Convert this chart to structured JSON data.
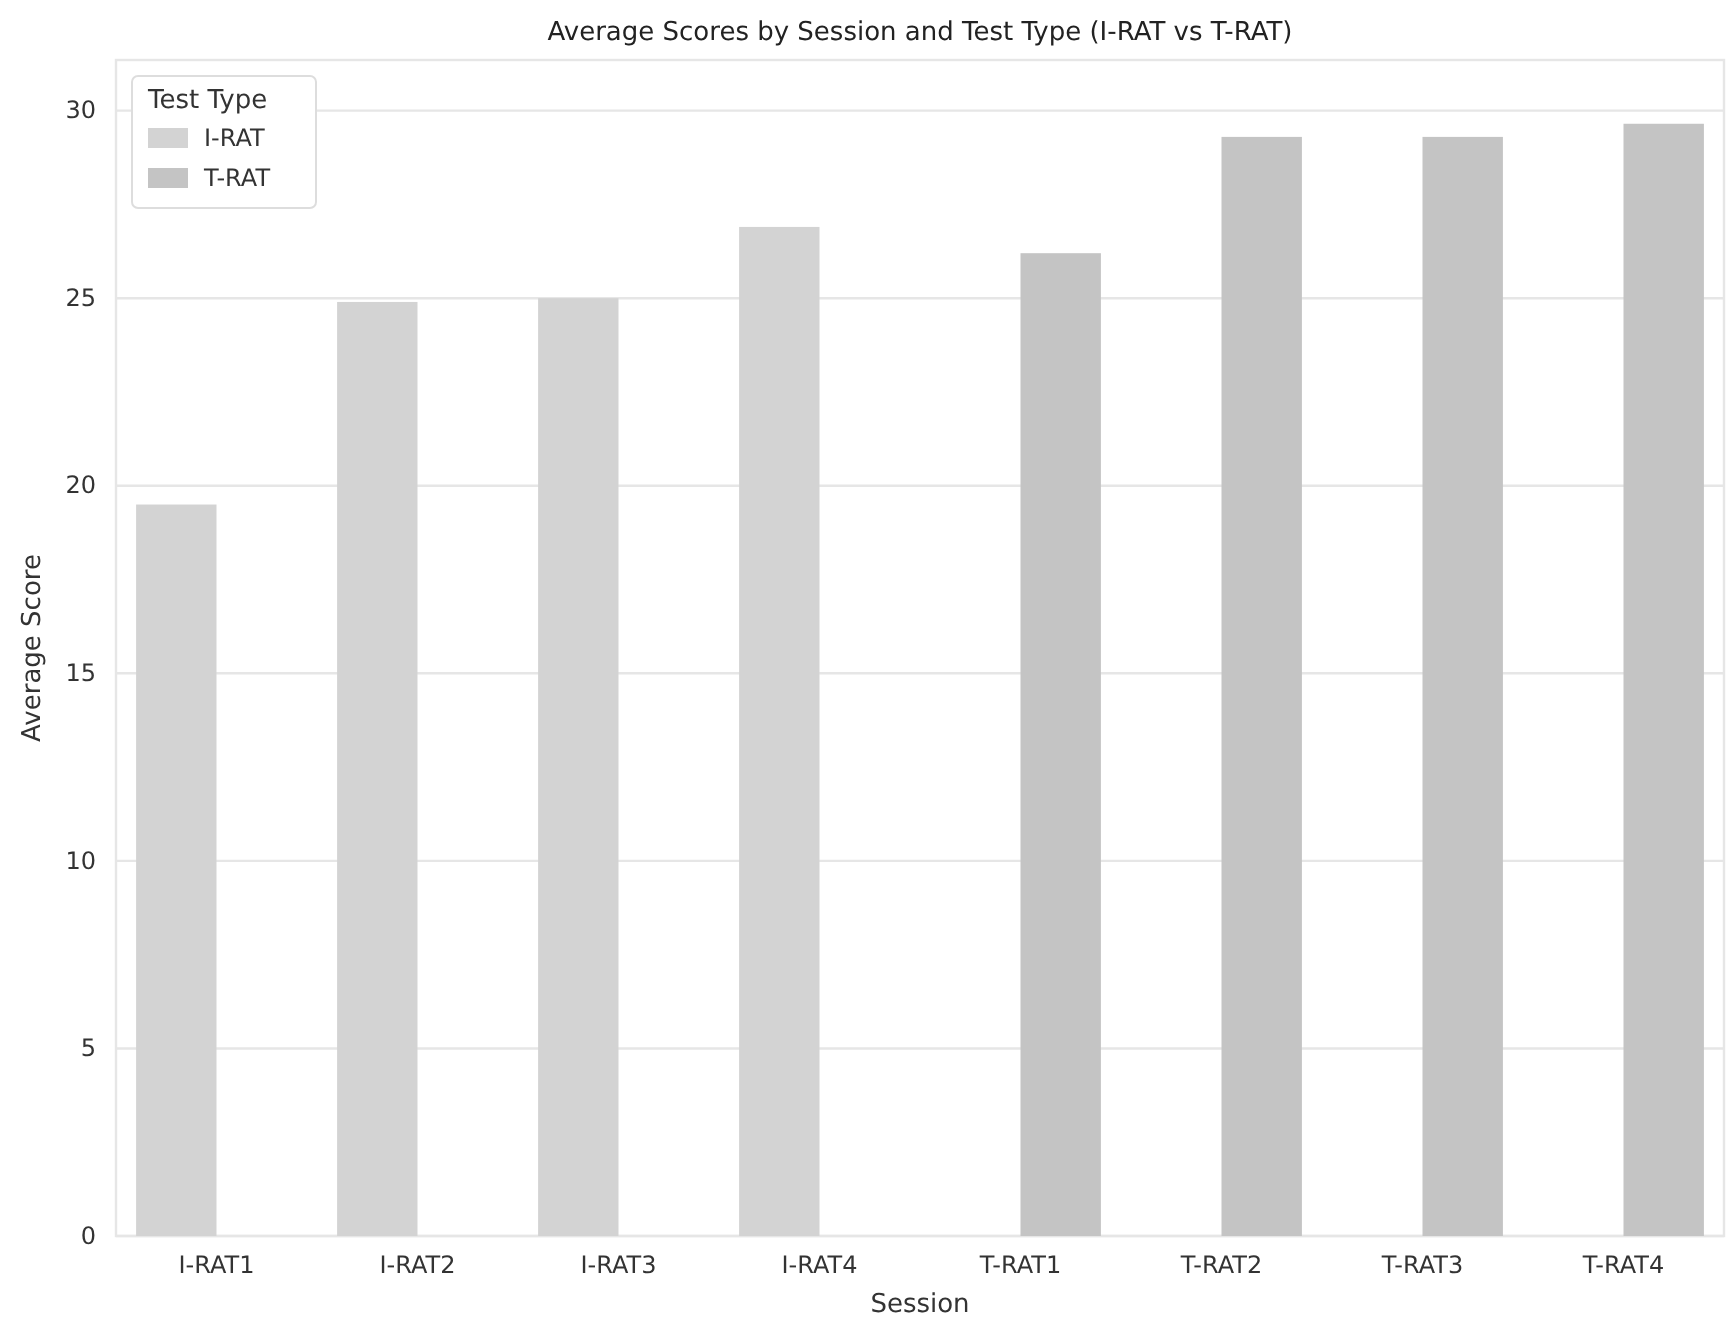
{
  "chart_data": {
    "type": "bar",
    "title": "Average Scores by Session and Test Type (I-RAT vs T-RAT)",
    "xlabel": "Session",
    "ylabel": "Average Score",
    "legend_title": "Test Type",
    "categories": [
      "I-RAT1",
      "I-RAT2",
      "I-RAT3",
      "I-RAT4",
      "T-RAT1",
      "T-RAT2",
      "T-RAT3",
      "T-RAT4"
    ],
    "series": [
      {
        "name": "I-RAT",
        "color": "#d3d3d3",
        "values": [
          19.5,
          24.9,
          25.0,
          26.9,
          null,
          null,
          null,
          null
        ]
      },
      {
        "name": "T-RAT",
        "color": "#c4c4c4",
        "values": [
          null,
          null,
          null,
          null,
          26.2,
          29.3,
          29.3,
          29.65
        ]
      }
    ],
    "ylim": [
      0,
      31.35
    ],
    "yticks": [
      0,
      5,
      10,
      15,
      20,
      25,
      30
    ],
    "grid": "y",
    "legend": "top left"
  }
}
